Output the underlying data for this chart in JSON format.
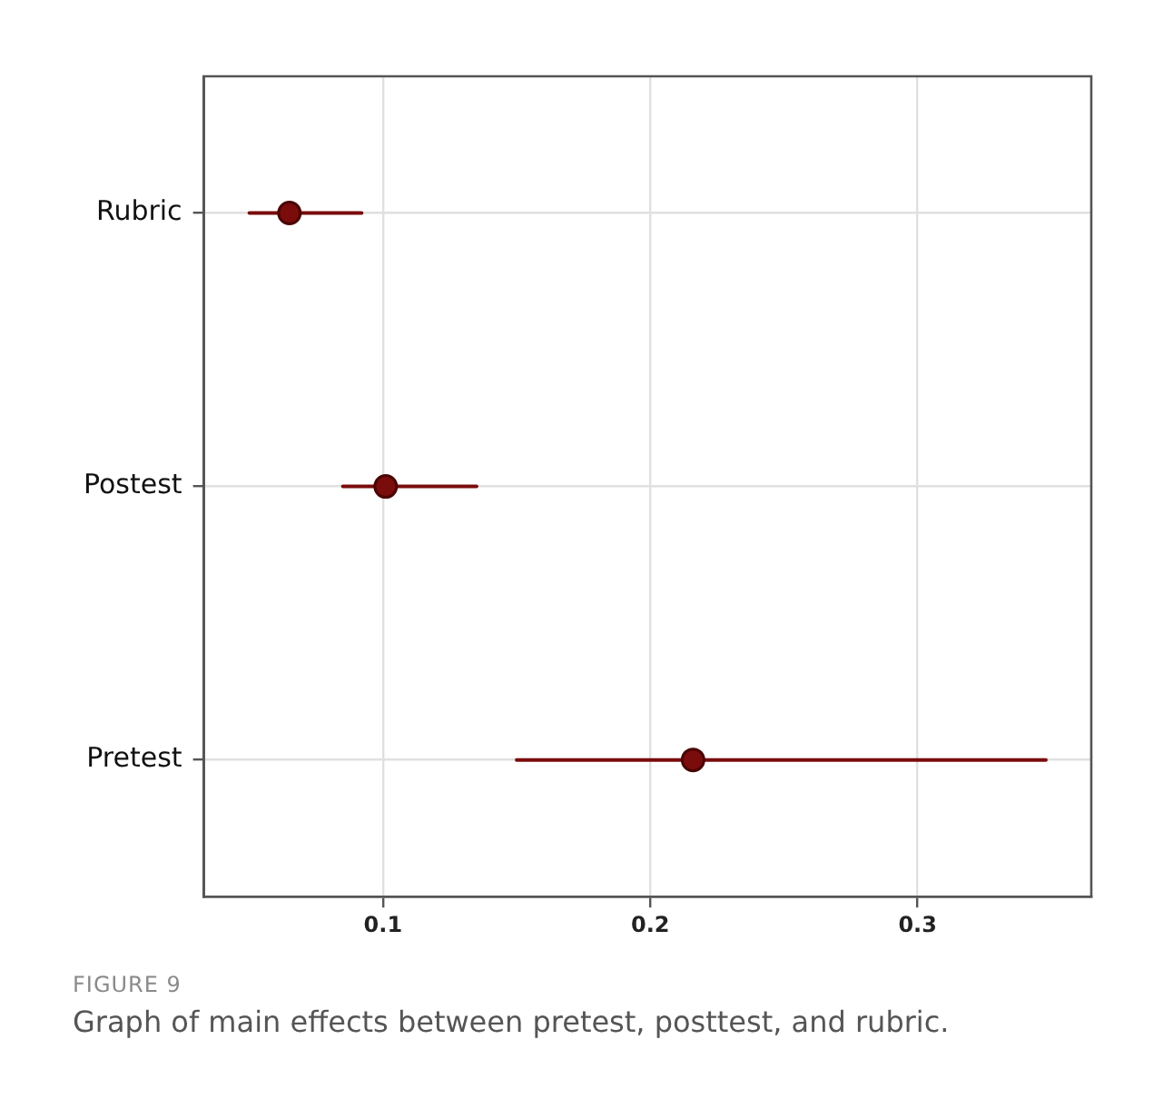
{
  "chart_data": {
    "type": "scatter",
    "orientation": "horizontal",
    "categories": [
      "Rubric",
      "Postest",
      "Pretest"
    ],
    "values": [
      0.065,
      0.101,
      0.216
    ],
    "errors": [
      [
        0.05,
        0.092
      ],
      [
        0.085,
        0.135
      ],
      [
        0.15,
        0.348
      ]
    ],
    "color": "#7a0c0c",
    "marker": "circle",
    "xlim": [
      0.033,
      0.365
    ],
    "xticks": [
      0.1,
      0.2,
      0.3
    ],
    "grid": true,
    "legend": false,
    "annotations": [
      "FIGURE 9",
      "Graph of main effects between pretest, posttest, and rubric."
    ]
  }
}
